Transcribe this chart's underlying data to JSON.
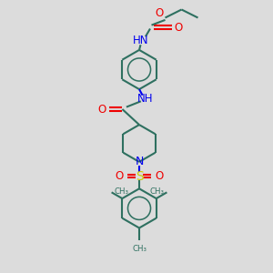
{
  "bg_color": "#dcdcdc",
  "bond_color": "#2e7060",
  "N_color": "#0000ee",
  "O_color": "#ee0000",
  "S_color": "#cccc00",
  "line_width": 1.5,
  "font_size": 8.5,
  "figsize": [
    3.0,
    3.0
  ],
  "dpi": 100,
  "xlim": [
    0,
    10
  ],
  "ylim": [
    0,
    10
  ]
}
